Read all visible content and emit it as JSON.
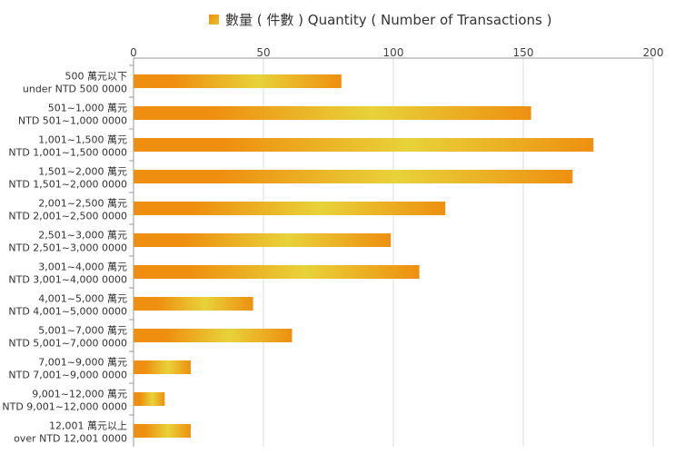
{
  "chart_data": {
    "type": "bar",
    "orientation": "horizontal",
    "legend": {
      "label": "數量 ( 件數 ) Quantity ( Number of Transactions )",
      "position": "top-center",
      "color": "#ee8f10"
    },
    "categories": [
      {
        "line1": "500 萬元以下",
        "line2": "under NTD 500 0000"
      },
      {
        "line1": "501~1,000 萬元",
        "line2": "NTD 501~1,000 0000"
      },
      {
        "line1": "1,001~1,500 萬元",
        "line2": "NTD 1,001~1,500 0000"
      },
      {
        "line1": "1,501~2,000 萬元",
        "line2": "NTD 1,501~2,000 0000"
      },
      {
        "line1": "2,001~2,500 萬元",
        "line2": "NTD 2,001~2,500 0000"
      },
      {
        "line1": "2,501~3,000 萬元",
        "line2": "NTD 2,501~3,000 0000"
      },
      {
        "line1": "3,001~4,000 萬元",
        "line2": "NTD 3,001~4,000 0000"
      },
      {
        "line1": "4,001~5,000 萬元",
        "line2": "NTD 4,001~5,000 0000"
      },
      {
        "line1": "5,001~7,000 萬元",
        "line2": "NTD 5,001~7,000 0000"
      },
      {
        "line1": "7,001~9,000 萬元",
        "line2": "NTD 7,001~9,000 0000"
      },
      {
        "line1": "9,001~12,000 萬元",
        "line2": "NTD 9,001~12,000 0000"
      },
      {
        "line1": "12,001 萬元以上",
        "line2": "over NTD 12,001 0000"
      }
    ],
    "values": [
      80,
      153,
      177,
      169,
      120,
      99,
      110,
      46,
      61,
      22,
      12,
      22
    ],
    "xlim": [
      0,
      200
    ],
    "xticks": [
      0,
      50,
      100,
      150,
      200
    ],
    "grid": true,
    "colors": {
      "bar_edge": "#ee8f10",
      "bar_mid": "#e8d23a",
      "grid": "#dddddd",
      "axis": "#999999"
    }
  }
}
